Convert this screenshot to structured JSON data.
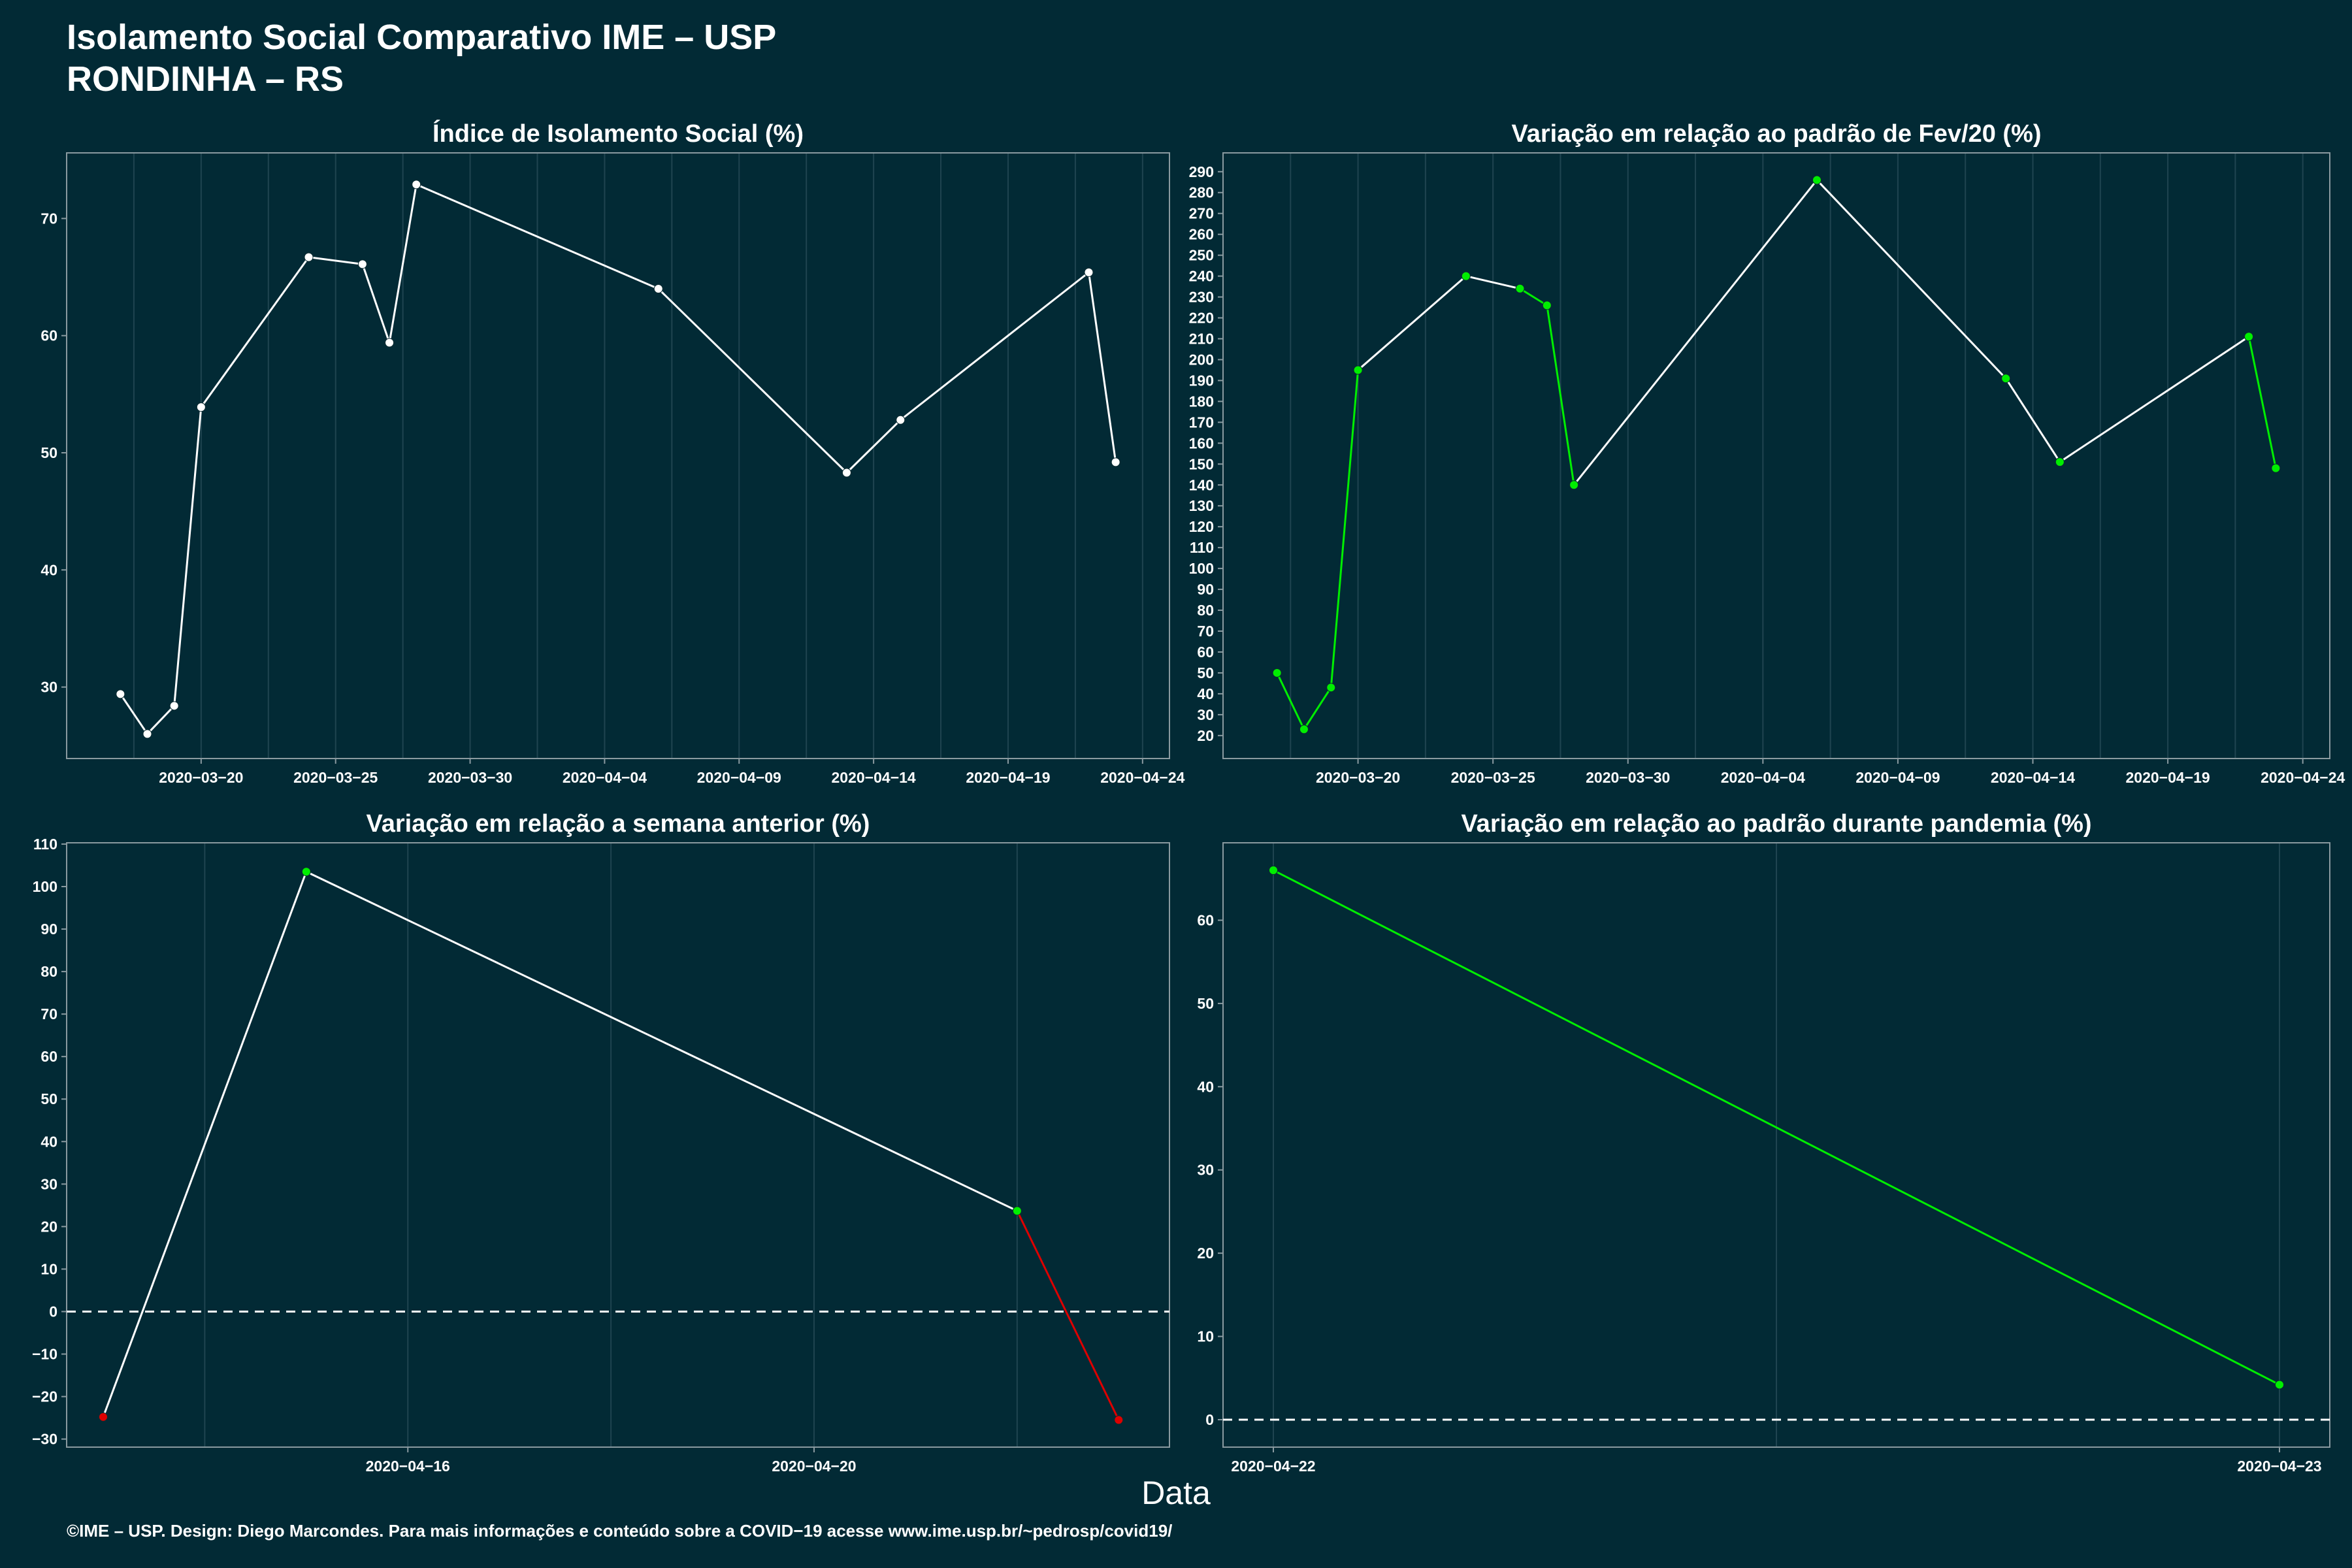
{
  "header": {
    "title": "Isolamento Social Comparativo IME – USP",
    "subtitle": "RONDINHA – RS"
  },
  "xlabel": "Data",
  "footer": "©IME – USP. Design: Diego Marcondes. Para mais informações e conteúdo sobre a COVID−19 acesse www.ime.usp.br/~pedrosp/covid19/",
  "colors": {
    "background": "#022a35",
    "line": "#ffffff",
    "increase": "#00ee00",
    "decrease": "#dd0000",
    "axis": "#8a9aa0",
    "grid": "#1f4450"
  },
  "chart_data": [
    {
      "type": "line",
      "title": "Índice de Isolamento Social (%)",
      "xlabel": "Data",
      "ylabel": "",
      "grid": true,
      "x": [
        "2020-03-17",
        "2020-03-18",
        "2020-03-19",
        "2020-03-20",
        "2020-03-24",
        "2020-03-26",
        "2020-03-27",
        "2020-03-28",
        "2020-04-06",
        "2020-04-13",
        "2020-04-15",
        "2020-04-22",
        "2020-04-23"
      ],
      "series": [
        {
          "values": [
            29.4,
            26.0,
            28.4,
            53.9,
            66.7,
            66.1,
            59.4,
            72.9,
            64.0,
            48.3,
            52.8,
            65.4,
            49.2
          ]
        }
      ],
      "point_colors": [
        "white",
        "white",
        "white",
        "white",
        "white",
        "white",
        "white",
        "white",
        "white",
        "white",
        "white",
        "white",
        "white"
      ],
      "segment_colors": [
        "white",
        "white",
        "white",
        "white",
        "white",
        "white",
        "white",
        "white",
        "white",
        "white",
        "white",
        "white"
      ],
      "xlim": [
        "2020-03-15",
        "2020-04-25"
      ],
      "ylim": [
        23.9,
        75.6
      ],
      "x_ticks": [
        "2020-03-20",
        "2020-03-25",
        "2020-03-30",
        "2020-04-04",
        "2020-04-09",
        "2020-04-14",
        "2020-04-19",
        "2020-04-24"
      ],
      "y_ticks": [
        30,
        40,
        50,
        60,
        70
      ]
    },
    {
      "type": "line",
      "title": "Variação em relação ao padrão de Fev/20 (%)",
      "xlabel": "Data",
      "ylabel": "",
      "grid": true,
      "x": [
        "2020-03-17",
        "2020-03-18",
        "2020-03-19",
        "2020-03-20",
        "2020-03-24",
        "2020-03-26",
        "2020-03-27",
        "2020-03-28",
        "2020-04-06",
        "2020-04-13",
        "2020-04-15",
        "2020-04-22",
        "2020-04-23"
      ],
      "series": [
        {
          "values": [
            50,
            23,
            43,
            195,
            240,
            234,
            226,
            140,
            286,
            191,
            151,
            211,
            148
          ]
        }
      ],
      "point_colors": [
        "green",
        "green",
        "green",
        "green",
        "green",
        "green",
        "green",
        "green",
        "green",
        "green",
        "green",
        "green",
        "green"
      ],
      "segment_colors": [
        "green",
        "green",
        "green",
        "white",
        "white",
        "green",
        "green",
        "white",
        "white",
        "white",
        "white",
        "green"
      ],
      "xlim": [
        "2020-03-15",
        "2020-04-25"
      ],
      "ylim": [
        9,
        299
      ],
      "x_ticks": [
        "2020-03-20",
        "2020-03-25",
        "2020-03-30",
        "2020-04-04",
        "2020-04-09",
        "2020-04-14",
        "2020-04-19",
        "2020-04-24"
      ],
      "y_ticks": [
        20,
        30,
        40,
        50,
        60,
        70,
        80,
        90,
        100,
        110,
        120,
        130,
        140,
        150,
        160,
        170,
        180,
        190,
        200,
        210,
        220,
        230,
        240,
        250,
        260,
        270,
        280,
        290
      ]
    },
    {
      "type": "line",
      "title": "Variação em relação a semana anterior (%)",
      "xlabel": "Data",
      "ylabel": "",
      "grid": true,
      "x": [
        "2020-04-13",
        "2020-04-15",
        "2020-04-22",
        "2020-04-23"
      ],
      "series": [
        {
          "values": [
            -24.8,
            103.5,
            23.7,
            -25.5
          ]
        }
      ],
      "point_colors": [
        "red",
        "green",
        "green",
        "red"
      ],
      "segment_colors": [
        "white",
        "white",
        "red"
      ],
      "reference_line": 0,
      "xlim": [
        "2020-04-12.64",
        "2020-04-23.5"
      ],
      "ylim": [
        -31.9,
        110.3
      ],
      "x_ticks": [
        "2020-04-16",
        "2020-04-20"
      ],
      "y_ticks": [
        -30,
        -20,
        -10,
        0,
        10,
        20,
        30,
        40,
        50,
        60,
        70,
        80,
        90,
        100,
        110
      ]
    },
    {
      "type": "line",
      "title": "Variação em relação ao padrão durante pandemia (%)",
      "xlabel": "Data",
      "ylabel": "",
      "grid": true,
      "x": [
        "2020-04-22",
        "2020-04-23"
      ],
      "series": [
        {
          "values": [
            66.0,
            4.2
          ]
        }
      ],
      "point_colors": [
        "green",
        "green"
      ],
      "segment_colors": [
        "green"
      ],
      "reference_line": 0,
      "xlim": [
        "2020-04-21.95",
        "2020-04-23.05"
      ],
      "ylim": [
        -3.3,
        69.3
      ],
      "x_ticks": [
        "2020-04-22",
        "2020-04-23"
      ],
      "y_ticks": [
        0,
        10,
        20,
        30,
        40,
        50,
        60
      ]
    }
  ]
}
